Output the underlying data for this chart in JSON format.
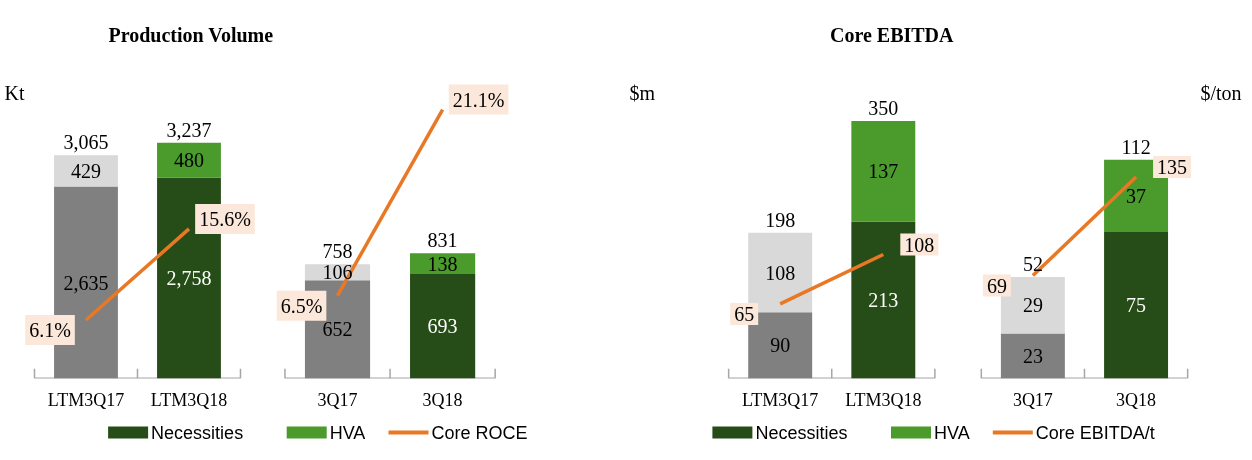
{
  "chart_data": [
    {
      "type": "bar",
      "title": "Production Volume",
      "ylabel": "Kt",
      "stacked": true,
      "categories": [
        "LTM3Q17",
        "LTM3Q18"
      ],
      "tick_labels": "x",
      "legend": "bottom",
      "totals": [
        "3,065",
        "3,237"
      ],
      "series": [
        {
          "name": "Necessities",
          "color": "#264d18",
          "colors": [
            "#808080",
            "#264d18"
          ],
          "values": [
            2635,
            2758
          ],
          "value_labels": [
            "2,635",
            "2,758"
          ]
        },
        {
          "name": "HVA",
          "color": "#4a9a2c",
          "colors": [
            "#d9d9d9",
            "#4a9a2c"
          ],
          "values": [
            429,
            480
          ],
          "value_labels": [
            "429",
            "480"
          ]
        },
        {
          "name": "Core ROCE",
          "type": "line",
          "axis": "y2",
          "color": "#e97824",
          "values": [
            6.1,
            15.6
          ],
          "value_labels": [
            "6.1%",
            "15.6%"
          ]
        }
      ]
    },
    {
      "type": "bar",
      "stacked": true,
      "categories": [
        "3Q17",
        "3Q18"
      ],
      "tick_labels": "x",
      "totals": [
        "758",
        "831"
      ],
      "series": [
        {
          "colors": [
            "#808080",
            "#264d18"
          ],
          "values": [
            652,
            693
          ],
          "value_labels": [
            "652",
            "693"
          ]
        },
        {
          "colors": [
            "#d9d9d9",
            "#4a9a2c"
          ],
          "values": [
            106,
            138
          ],
          "value_labels": [
            "106",
            "138"
          ]
        },
        {
          "type": "line",
          "axis": "y2",
          "color": "#e97824",
          "values": [
            6.5,
            21.1
          ],
          "value_labels": [
            "6.5%",
            "21.1%"
          ]
        }
      ]
    },
    {
      "type": "bar",
      "title": "Core EBITDA",
      "ylabel": "$m",
      "stacked": true,
      "categories": [
        "LTM3Q17",
        "LTM3Q18"
      ],
      "tick_labels": "x",
      "legend": "bottom",
      "totals": [
        "198",
        "350"
      ],
      "series": [
        {
          "name": "Necessities",
          "color": "#264d18",
          "colors": [
            "#808080",
            "#264d18"
          ],
          "values": [
            90,
            213
          ],
          "value_labels": [
            "90",
            "213"
          ]
        },
        {
          "name": "HVA",
          "color": "#4a9a2c",
          "colors": [
            "#d9d9d9",
            "#4a9a2c"
          ],
          "values": [
            108,
            137
          ],
          "value_labels": [
            "108",
            "137"
          ]
        },
        {
          "name": "Core EBITDA/t",
          "type": "line",
          "axis": "y2",
          "color": "#e97824",
          "values": [
            65,
            108
          ],
          "value_labels": [
            "65",
            "108"
          ]
        }
      ]
    },
    {
      "type": "bar",
      "y2label": "$/ton",
      "stacked": true,
      "categories": [
        "3Q17",
        "3Q18"
      ],
      "tick_labels": "x",
      "totals": [
        "52",
        "112"
      ],
      "series": [
        {
          "colors": [
            "#808080",
            "#264d18"
          ],
          "values": [
            23,
            75
          ],
          "value_labels": [
            "23",
            "75"
          ]
        },
        {
          "colors": [
            "#d9d9d9",
            "#4a9a2c"
          ],
          "values": [
            29,
            37
          ],
          "value_labels": [
            "29",
            "37"
          ]
        },
        {
          "type": "line",
          "axis": "y2",
          "color": "#e97824",
          "values": [
            69,
            135
          ],
          "value_labels": [
            "69",
            "135"
          ]
        }
      ]
    }
  ]
}
